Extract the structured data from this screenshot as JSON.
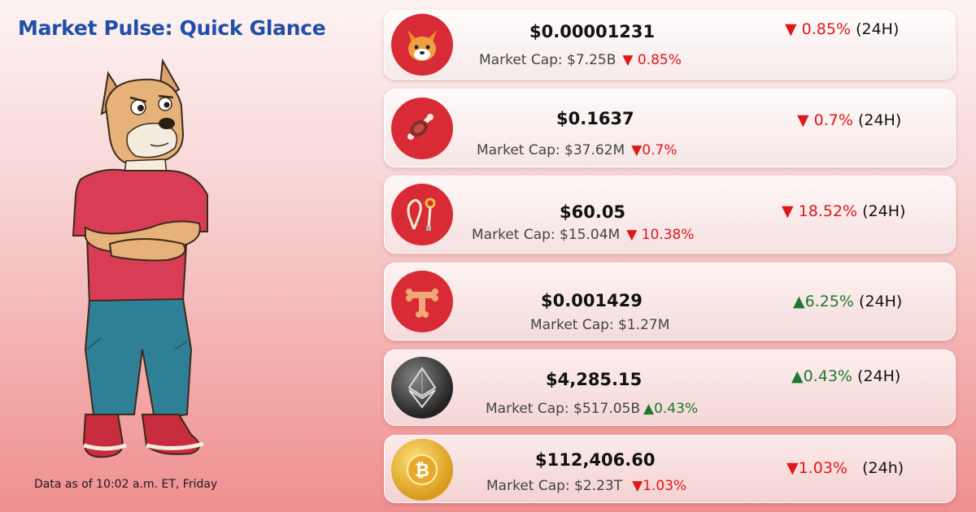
{
  "header": {
    "title": "Market Pulse: Quick Glance"
  },
  "footer": {
    "timestamp": "Data as of 10:02 a.m. ET, Friday"
  },
  "colors": {
    "down": "#e0171a",
    "up": "#1c7a2e",
    "title": "#1f4fa8"
  },
  "cards": [
    {
      "icon": "shiba-inu-coin-icon",
      "price": "$0.00001231",
      "market_cap": "Market Cap: $7.25B",
      "mcap_change": "▼ 0.85%",
      "change_24h": "▼ 0.85%",
      "period": "(24H)",
      "direction": "down"
    },
    {
      "icon": "bone-meat-coin-icon",
      "price": "$0.1637",
      "market_cap": "Market Cap: $37.62M",
      "mcap_change": "▼0.7%",
      "change_24h": "▼ 0.7%",
      "period": "(24H)",
      "direction": "down"
    },
    {
      "icon": "leash-coin-icon",
      "price": "$60.05",
      "market_cap": "Market Cap: $15.04M",
      "mcap_change": "▼  10.38%",
      "change_24h": "▼ 18.52%",
      "period": "(24H)",
      "direction": "down"
    },
    {
      "icon": "bone-t-coin-icon",
      "price": "$0.001429",
      "market_cap": "Market Cap: $1.27M",
      "mcap_change": "",
      "change_24h": "▲6.25%",
      "period": "(24H)",
      "direction": "up"
    },
    {
      "icon": "ethereum-coin-icon",
      "price": "$4,285.15",
      "market_cap": "Market Cap: $517.05B",
      "mcap_change": "▲0.43%",
      "change_24h": "▲0.43%",
      "period": "(24H)",
      "direction": "up"
    },
    {
      "icon": "bitcoin-coin-icon",
      "price": "$112,406.60",
      "market_cap": "Market Cap: $2.23T",
      "mcap_change": "▼1.03%",
      "change_24h": "▼1.03%",
      "period": "(24h)",
      "direction": "down"
    }
  ]
}
